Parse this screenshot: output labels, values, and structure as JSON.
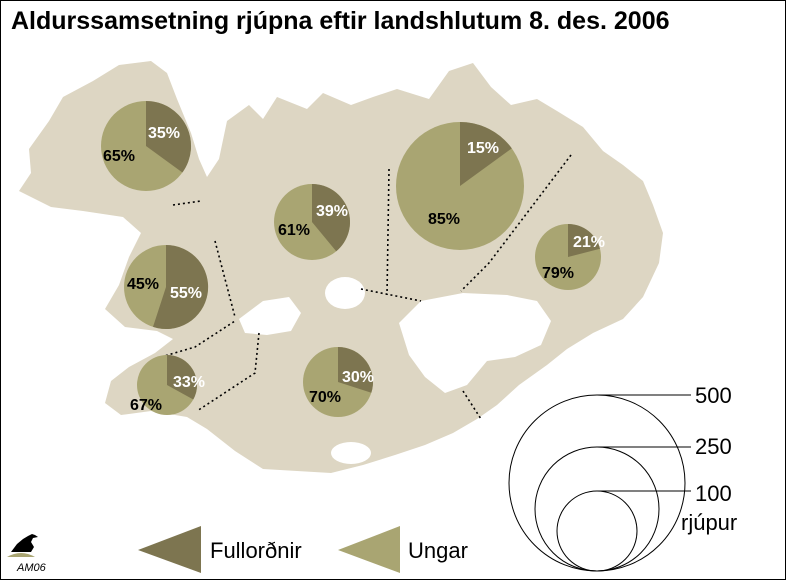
{
  "title": "Aldurssamsetning rjúpna eftir landshlutum 8. des. 2006",
  "colors": {
    "land": "#ddd6c3",
    "adults": "#7d7550",
    "juveniles": "#a9a572",
    "adult_label": "#ffffff",
    "juvenile_label": "#000000",
    "boundary": "#000000"
  },
  "chart_data": {
    "type": "pie",
    "title": "Aldurssamsetning rjúpna eftir landshlutum 8. des. 2006",
    "series": [
      {
        "name": "Fullorðnir",
        "color": "#7d7550"
      },
      {
        "name": "Ungar",
        "color": "#a9a572"
      }
    ],
    "regions": [
      {
        "adults": 35,
        "juveniles": 65
      },
      {
        "adults": 39,
        "juveniles": 61
      },
      {
        "adults": 15,
        "juveniles": 85
      },
      {
        "adults": 21,
        "juveniles": 79
      },
      {
        "adults": 55,
        "juveniles": 45
      },
      {
        "adults": 33,
        "juveniles": 67
      },
      {
        "adults": 30,
        "juveniles": 70
      }
    ],
    "size_legend": {
      "values": [
        500,
        250,
        100
      ],
      "labels": [
        "500",
        "250",
        "100"
      ],
      "unit": "rjúpur"
    }
  },
  "credit": "AM06"
}
